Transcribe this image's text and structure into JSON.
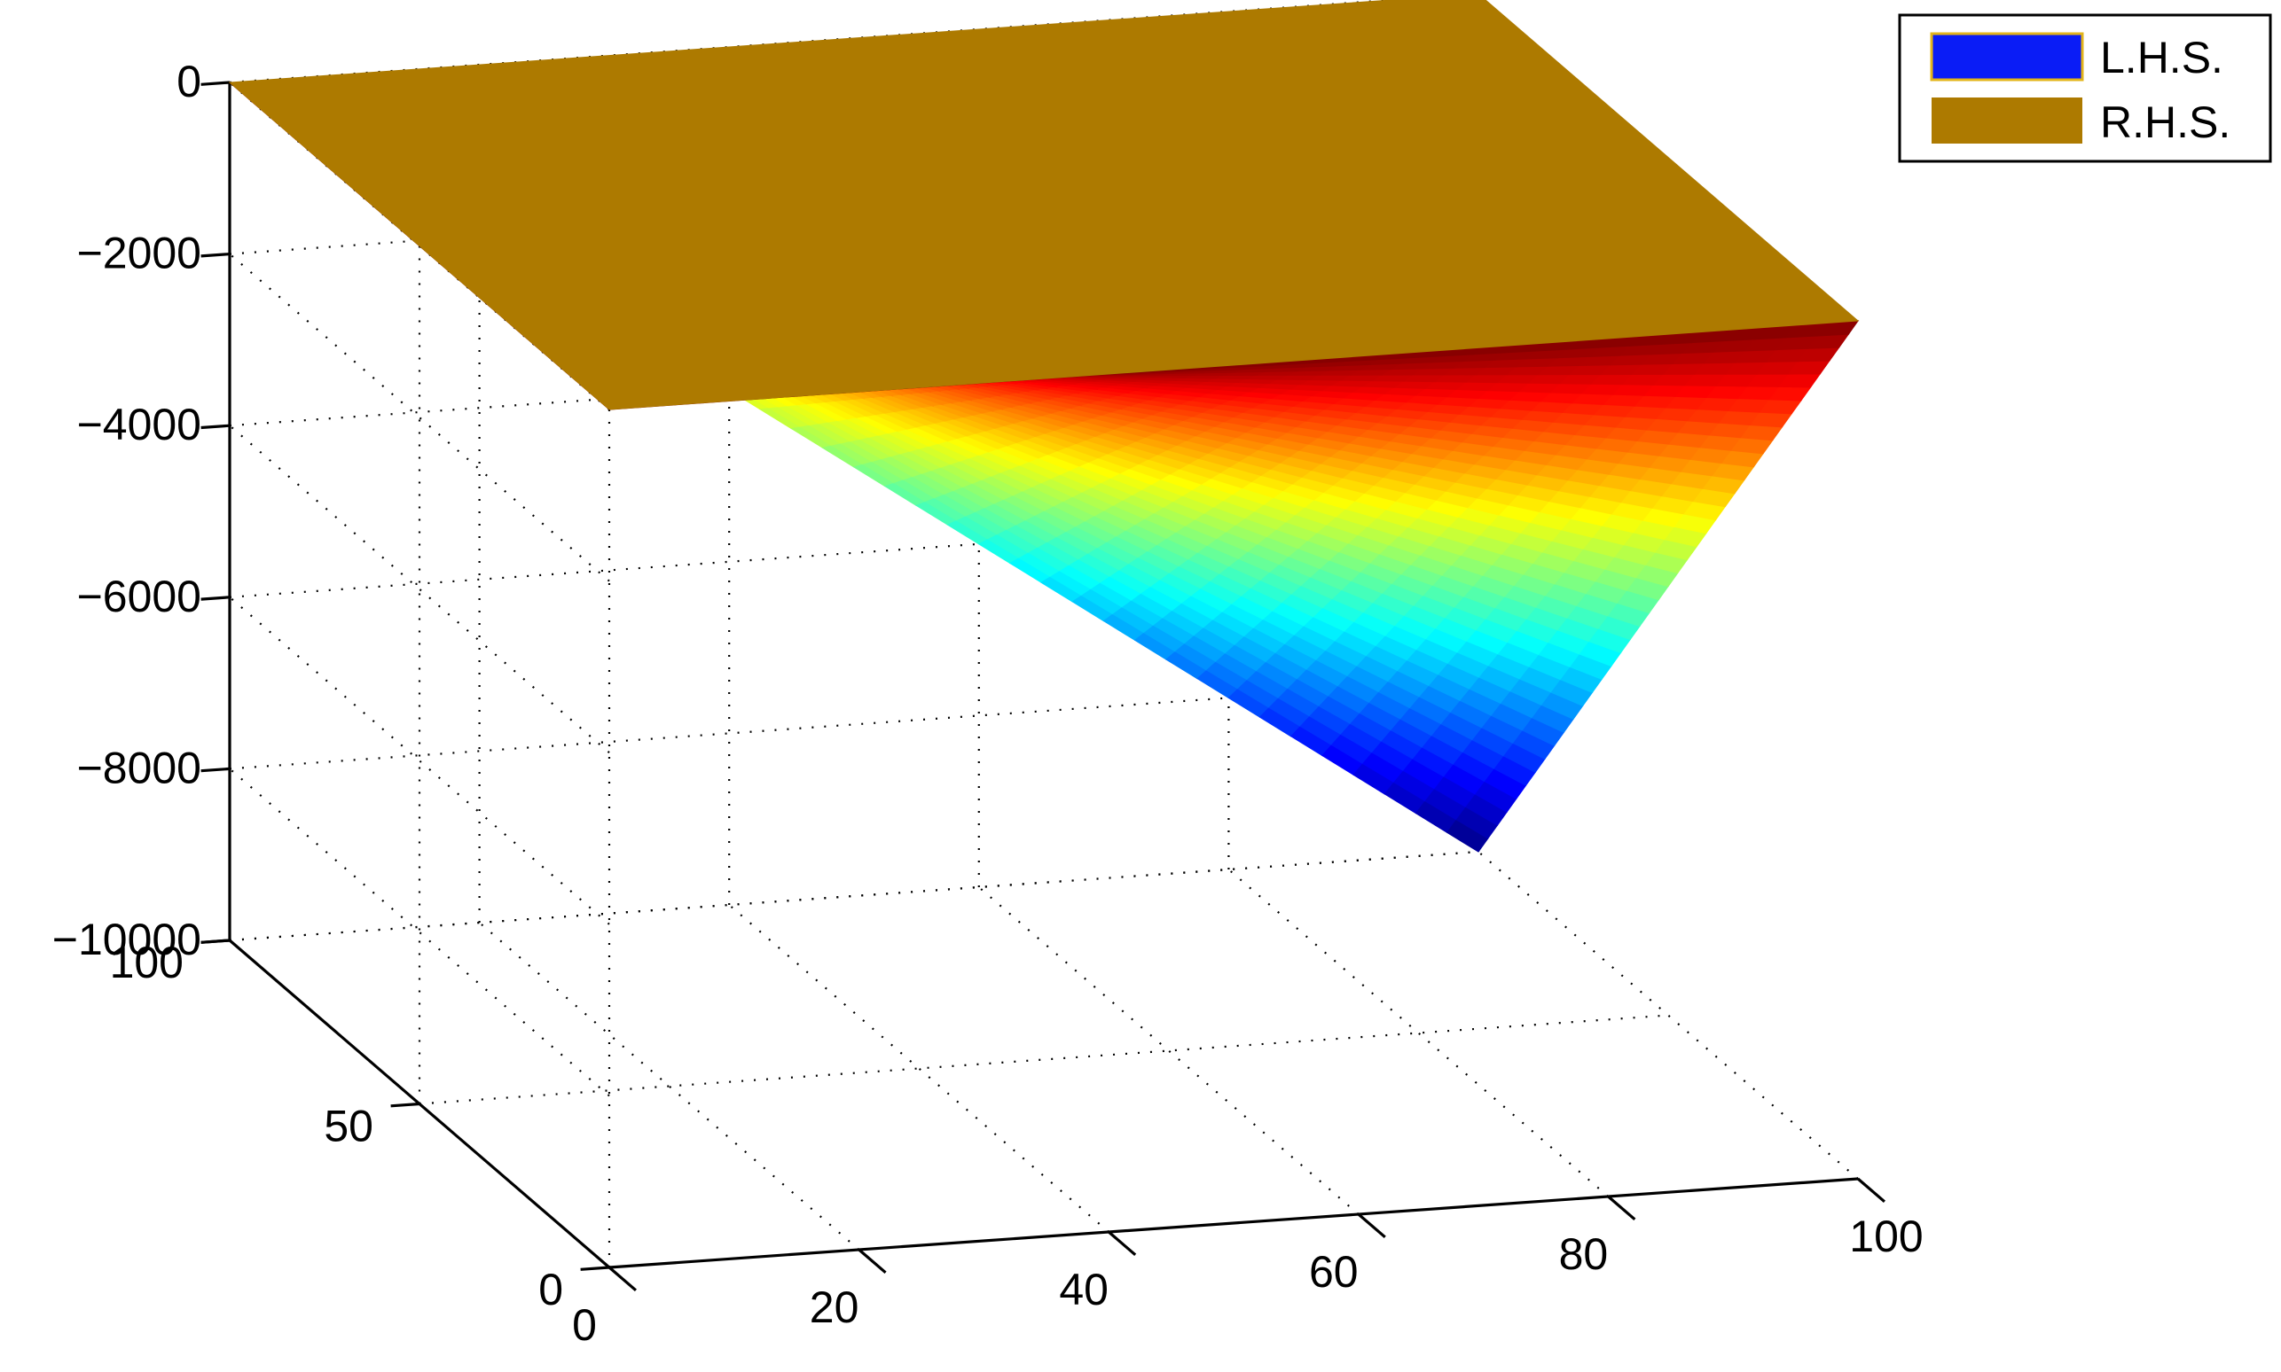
{
  "chart_data": {
    "type": "surface3d",
    "title": "",
    "xlabel": "",
    "ylabel": "",
    "zlabel": "",
    "xlim": [
      0,
      100
    ],
    "ylim": [
      0,
      100
    ],
    "zlim": [
      -10000,
      0
    ],
    "x_ticks": [
      0,
      20,
      40,
      60,
      80,
      100
    ],
    "y_ticks": [
      0,
      50,
      100
    ],
    "z_ticks": [
      0,
      -2000,
      -4000,
      -6000,
      -8000,
      -10000
    ],
    "z_tick_labels": [
      "0",
      "−2000",
      "−4000",
      "−6000",
      "−8000",
      "−10000"
    ],
    "grid": true,
    "legend_position": "top-right",
    "series": [
      {
        "name": "L.H.S.",
        "surface": "z = -x*y",
        "x_range": [
          0,
          100
        ],
        "y_range": [
          0,
          100
        ],
        "colormap": "jet",
        "legend_color": "#0a1cf6",
        "legend_edge_color": "#e3b51a"
      },
      {
        "name": "R.H.S.",
        "surface": "z = 0",
        "x_range": [
          0,
          100
        ],
        "y_range": [
          0,
          100
        ],
        "color": "#ad7a00",
        "legend_color": "#ad7a00"
      }
    ]
  }
}
